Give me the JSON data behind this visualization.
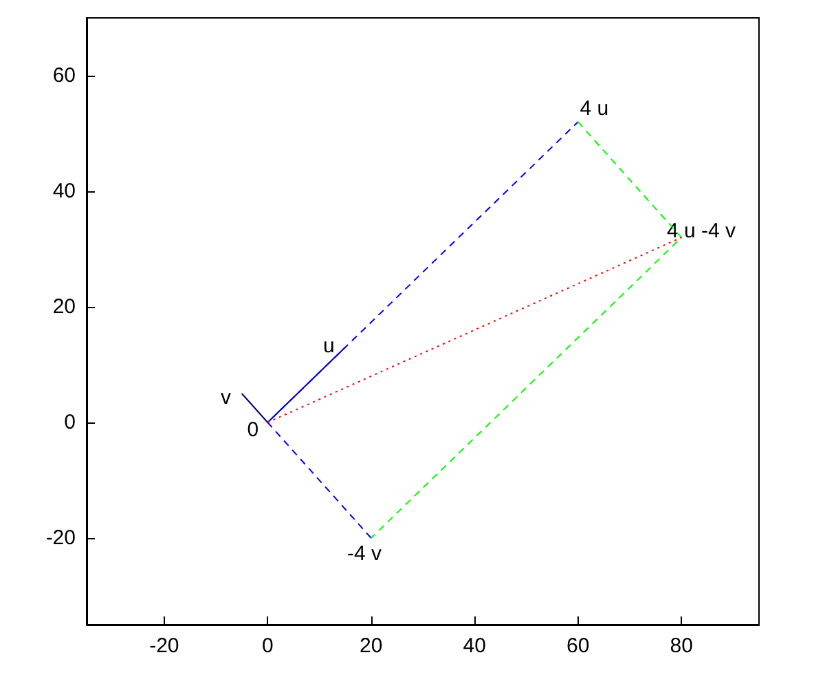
{
  "chart_data": {
    "type": "line",
    "xlim": [
      -35,
      95
    ],
    "ylim": [
      -35,
      70
    ],
    "xticks": [
      -20,
      0,
      20,
      40,
      60,
      80
    ],
    "yticks": [
      -20,
      0,
      20,
      40,
      60
    ],
    "grid": false,
    "marker": "none",
    "series": [
      {
        "color": "#000080",
        "x": [
          0,
          15
        ],
        "values": [
          0,
          13
        ],
        "line_style": "solid"
      },
      {
        "color": "#000080",
        "x": [
          0,
          -5
        ],
        "values": [
          0,
          5
        ],
        "line_style": "solid"
      },
      {
        "color": "#0000ff",
        "x": [
          20,
          0,
          60
        ],
        "values": [
          -20,
          0,
          52
        ],
        "line_style": "dashed"
      },
      {
        "color": "#00ff00",
        "x": [
          60,
          80,
          20
        ],
        "values": [
          52,
          32,
          -20
        ],
        "line_style": "dashed"
      },
      {
        "color": "#ff0000",
        "x": [
          0,
          80
        ],
        "values": [
          0,
          32
        ],
        "line_style": "dotted"
      }
    ],
    "annotations": [
      {
        "text": "u",
        "x": 15,
        "y": 13
      },
      {
        "text": "v",
        "x": -5,
        "y": 5
      },
      {
        "text": "4 u",
        "x": 60,
        "y": 52
      },
      {
        "text": "4 u -4 v",
        "x": 80,
        "y": 32
      },
      {
        "text": "-4 v",
        "x": 20,
        "y": -20
      },
      {
        "text": "0",
        "x": 0,
        "y": 0
      }
    ]
  }
}
